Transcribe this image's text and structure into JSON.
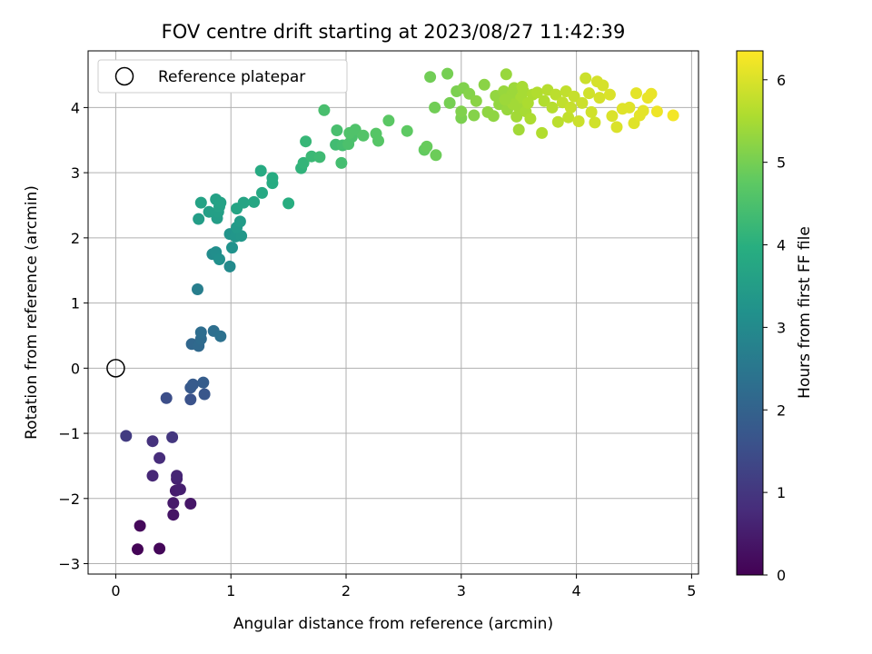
{
  "chart_data": {
    "type": "scatter",
    "title": "FOV centre drift starting at 2023/08/27 11:42:39",
    "xlabel": "Angular distance from reference (arcmin)",
    "ylabel": "Rotation from reference (arcmin)",
    "xlim": [
      -0.24,
      5.06
    ],
    "ylim": [
      -3.16,
      4.87
    ],
    "xticks": [
      0,
      1,
      2,
      3,
      4,
      5
    ],
    "xtick_labels": [
      "0",
      "1",
      "2",
      "3",
      "4",
      "5"
    ],
    "yticks": [
      -3,
      -2,
      -1,
      0,
      1,
      2,
      3,
      4
    ],
    "ytick_labels": [
      "−3",
      "−2",
      "−1",
      "0",
      "1",
      "2",
      "3",
      "4"
    ],
    "grid": true,
    "colormap": "viridis",
    "colorbar": {
      "label": "Hours from first FF file",
      "range": [
        0,
        6.35
      ],
      "ticks": [
        0,
        1,
        2,
        3,
        4,
        5,
        6
      ],
      "tick_labels": [
        "0",
        "1",
        "2",
        "3",
        "4",
        "5",
        "6"
      ]
    },
    "legend": {
      "position": "top-left",
      "entries": [
        "Reference platepar"
      ]
    },
    "reference_point": {
      "x": 0,
      "y": 0
    },
    "point_columns": [
      "x",
      "y",
      "hours"
    ],
    "points": [
      [
        0.19,
        -2.78,
        0.05
      ],
      [
        0.38,
        -2.77,
        0.1
      ],
      [
        0.21,
        -2.42,
        0.15
      ],
      [
        0.5,
        -2.25,
        0.35
      ],
      [
        0.65,
        -2.08,
        0.4
      ],
      [
        0.5,
        -2.07,
        0.45
      ],
      [
        0.52,
        -1.88,
        0.5
      ],
      [
        0.56,
        -1.86,
        0.55
      ],
      [
        0.53,
        -1.7,
        0.6
      ],
      [
        0.53,
        -1.65,
        0.65
      ],
      [
        0.32,
        -1.65,
        0.7
      ],
      [
        0.38,
        -1.38,
        0.8
      ],
      [
        0.32,
        -1.12,
        0.9
      ],
      [
        0.49,
        -1.06,
        1.0
      ],
      [
        0.09,
        -1.04,
        1.1
      ],
      [
        0.44,
        -0.46,
        1.5
      ],
      [
        0.65,
        -0.48,
        1.6
      ],
      [
        0.77,
        -0.4,
        1.7
      ],
      [
        0.65,
        -0.3,
        1.75
      ],
      [
        0.67,
        -0.25,
        1.8
      ],
      [
        0.76,
        -0.22,
        1.85
      ],
      [
        0.66,
        0.37,
        2.1
      ],
      [
        0.72,
        0.34,
        2.15
      ],
      [
        0.74,
        0.45,
        2.2
      ],
      [
        0.74,
        0.55,
        2.25
      ],
      [
        0.85,
        0.57,
        2.3
      ],
      [
        0.91,
        0.49,
        2.35
      ],
      [
        0.71,
        1.21,
        2.7
      ],
      [
        0.99,
        1.56,
        3.0
      ],
      [
        0.84,
        1.75,
        3.05
      ],
      [
        0.87,
        1.78,
        3.1
      ],
      [
        0.9,
        1.67,
        3.15
      ],
      [
        1.01,
        1.85,
        3.2
      ],
      [
        0.99,
        2.06,
        3.25
      ],
      [
        1.04,
        2.02,
        3.3
      ],
      [
        1.09,
        2.03,
        3.35
      ],
      [
        1.05,
        2.16,
        3.4
      ],
      [
        1.08,
        2.25,
        3.45
      ],
      [
        0.72,
        2.29,
        3.5
      ],
      [
        0.88,
        2.3,
        3.5
      ],
      [
        0.81,
        2.4,
        3.55
      ],
      [
        0.89,
        2.4,
        3.55
      ],
      [
        0.9,
        2.48,
        3.6
      ],
      [
        0.87,
        2.59,
        3.6
      ],
      [
        0.74,
        2.54,
        3.65
      ],
      [
        0.91,
        2.54,
        3.65
      ],
      [
        1.05,
        2.45,
        3.7
      ],
      [
        1.11,
        2.54,
        3.7
      ],
      [
        1.2,
        2.55,
        3.75
      ],
      [
        1.27,
        2.69,
        3.8
      ],
      [
        1.26,
        3.03,
        3.85
      ],
      [
        1.36,
        2.84,
        3.9
      ],
      [
        1.36,
        2.92,
        3.9
      ],
      [
        1.5,
        2.53,
        3.95
      ],
      [
        1.61,
        3.07,
        4.1
      ],
      [
        1.63,
        3.15,
        4.15
      ],
      [
        1.65,
        3.48,
        4.2
      ],
      [
        1.7,
        3.25,
        4.25
      ],
      [
        1.77,
        3.24,
        4.3
      ],
      [
        1.91,
        3.43,
        4.35
      ],
      [
        1.96,
        3.15,
        4.4
      ],
      [
        1.97,
        3.42,
        4.4
      ],
      [
        1.92,
        3.65,
        4.45
      ],
      [
        1.81,
        3.96,
        4.45
      ],
      [
        2.02,
        3.44,
        4.5
      ],
      [
        2.05,
        3.55,
        4.5
      ],
      [
        2.03,
        3.61,
        4.55
      ],
      [
        2.08,
        3.66,
        4.55
      ],
      [
        2.15,
        3.57,
        4.6
      ],
      [
        2.26,
        3.6,
        4.65
      ],
      [
        2.28,
        3.49,
        4.65
      ],
      [
        2.37,
        3.8,
        4.7
      ],
      [
        2.53,
        3.64,
        4.75
      ],
      [
        2.68,
        3.35,
        4.8
      ],
      [
        2.7,
        3.4,
        4.85
      ],
      [
        2.78,
        3.27,
        4.9
      ],
      [
        2.77,
        4.0,
        4.95
      ],
      [
        2.73,
        4.47,
        4.95
      ],
      [
        2.88,
        4.52,
        5.0
      ],
      [
        2.9,
        4.07,
        5.0
      ],
      [
        2.96,
        4.25,
        5.05
      ],
      [
        3.0,
        3.84,
        5.05
      ],
      [
        3.02,
        4.3,
        5.1
      ],
      [
        3.0,
        3.94,
        5.1
      ],
      [
        3.07,
        4.21,
        5.15
      ],
      [
        3.11,
        3.88,
        5.15
      ],
      [
        3.13,
        4.1,
        5.2
      ],
      [
        3.2,
        4.35,
        5.2
      ],
      [
        3.23,
        3.93,
        5.25
      ],
      [
        3.28,
        3.87,
        5.25
      ],
      [
        3.3,
        4.18,
        5.3
      ],
      [
        3.33,
        4.05,
        5.3
      ],
      [
        3.37,
        4.25,
        5.35
      ],
      [
        3.39,
        4.51,
        5.35
      ],
      [
        3.4,
        3.97,
        5.35
      ],
      [
        3.42,
        4.1,
        5.4
      ],
      [
        3.44,
        4.2,
        5.4
      ],
      [
        3.46,
        4.3,
        5.4
      ],
      [
        3.48,
        3.86,
        5.45
      ],
      [
        3.5,
        4.0,
        5.45
      ],
      [
        3.5,
        3.66,
        5.45
      ],
      [
        3.52,
        4.15,
        5.5
      ],
      [
        3.54,
        4.25,
        5.5
      ],
      [
        3.56,
        3.94,
        5.5
      ],
      [
        3.58,
        4.07,
        5.55
      ],
      [
        3.6,
        3.83,
        5.55
      ],
      [
        3.62,
        4.2,
        5.55
      ],
      [
        3.45,
        4.05,
        5.45
      ],
      [
        3.38,
        4.12,
        5.4
      ],
      [
        3.53,
        4.32,
        5.5
      ],
      [
        3.66,
        4.23,
        5.6
      ],
      [
        3.7,
        3.61,
        5.6
      ],
      [
        3.72,
        4.1,
        5.6
      ],
      [
        3.75,
        4.27,
        5.65
      ],
      [
        3.79,
        4.0,
        5.65
      ],
      [
        3.82,
        4.2,
        5.7
      ],
      [
        3.84,
        3.78,
        5.7
      ],
      [
        3.88,
        4.08,
        5.75
      ],
      [
        3.91,
        4.25,
        5.75
      ],
      [
        3.93,
        3.85,
        5.75
      ],
      [
        3.95,
        4.0,
        5.8
      ],
      [
        3.98,
        4.17,
        5.8
      ],
      [
        4.02,
        3.79,
        5.85
      ],
      [
        4.05,
        4.07,
        5.85
      ],
      [
        4.08,
        4.45,
        5.85
      ],
      [
        4.11,
        4.22,
        5.9
      ],
      [
        4.13,
        3.93,
        5.9
      ],
      [
        4.16,
        3.77,
        5.9
      ],
      [
        4.18,
        4.4,
        5.95
      ],
      [
        4.2,
        4.15,
        5.95
      ],
      [
        4.23,
        4.34,
        5.95
      ],
      [
        4.29,
        4.2,
        6.0
      ],
      [
        4.31,
        3.87,
        6.0
      ],
      [
        4.35,
        3.7,
        6.0
      ],
      [
        4.4,
        3.98,
        6.05
      ],
      [
        4.46,
        4.0,
        6.05
      ],
      [
        4.5,
        3.76,
        6.05
      ],
      [
        4.52,
        4.22,
        6.1
      ],
      [
        4.55,
        3.88,
        6.1
      ],
      [
        4.58,
        3.95,
        6.1
      ],
      [
        4.62,
        4.15,
        6.15
      ],
      [
        4.65,
        4.21,
        6.15
      ],
      [
        4.7,
        3.94,
        6.2
      ],
      [
        4.84,
        3.88,
        6.25
      ]
    ]
  }
}
